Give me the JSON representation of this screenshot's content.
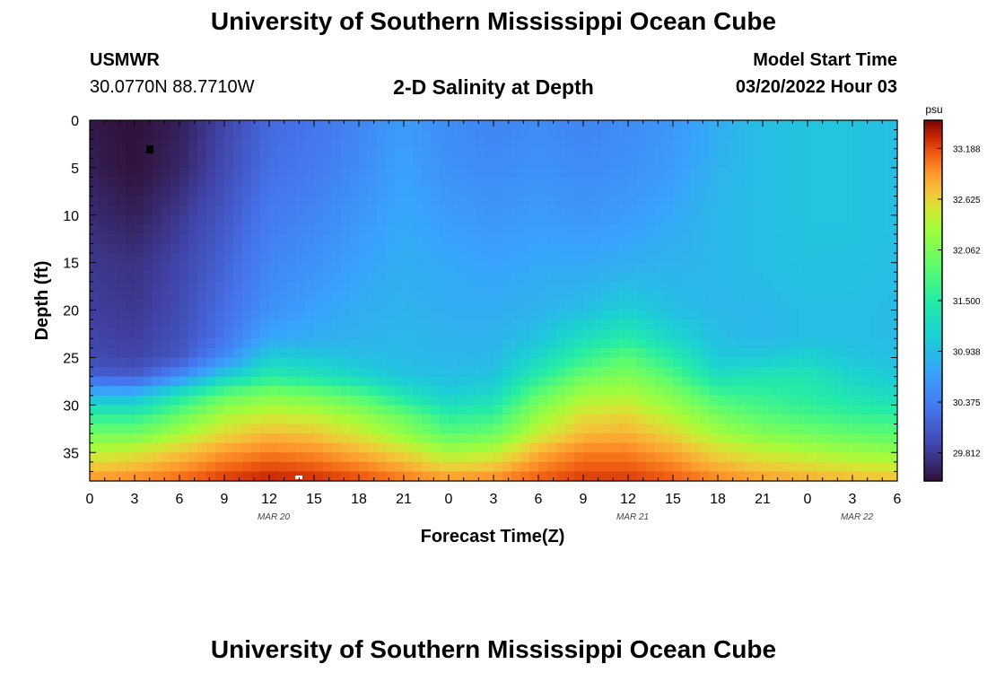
{
  "header": {
    "title": "University of Southern Mississippi Ocean Cube",
    "station": "USMWR",
    "coords": "30.0770N  88.7710W",
    "subtitle": "2-D Salinity at Depth",
    "model_start_label": "Model Start Time",
    "model_start_value": "03/20/2022 Hour 03"
  },
  "footer": {
    "title": "University of Southern Mississippi Ocean Cube"
  },
  "chart_data": {
    "type": "heatmap",
    "title": "2-D Salinity at Depth",
    "xlabel": "Forecast Time(Z)",
    "ylabel": "Depth (ft)",
    "x_range_hours": [
      0,
      54
    ],
    "x_start": "MAR 20 00Z",
    "x_tick_labels": [
      "0",
      "3",
      "6",
      "9",
      "12",
      "15",
      "18",
      "21",
      "0",
      "3",
      "6",
      "9",
      "12",
      "15",
      "18",
      "21",
      "0",
      "3",
      "6"
    ],
    "date_labels": [
      {
        "hour": 12,
        "text": "MAR 20"
      },
      {
        "hour": 36,
        "text": "MAR 21"
      },
      {
        "hour": 51,
        "text": "MAR 22"
      }
    ],
    "y_range": [
      0,
      38
    ],
    "y_ticks": [
      0,
      5,
      10,
      15,
      20,
      25,
      30,
      35
    ],
    "colorbar": {
      "unit": "psu",
      "range": [
        29.5,
        33.5
      ],
      "ticks": [
        "33.188",
        "32.625",
        "32.062",
        "31.500",
        "30.938",
        "30.375",
        "29.812"
      ]
    },
    "salinity_field_psu": {
      "depth_ft": [
        0,
        5,
        10,
        15,
        20,
        23,
        25,
        27,
        29,
        31,
        33,
        35,
        38
      ],
      "hours": [
        0,
        3,
        6,
        9,
        12,
        15,
        18,
        21,
        24,
        27,
        30,
        33,
        36,
        39,
        42,
        45,
        48,
        51,
        54
      ],
      "values": [
        [
          29.55,
          29.5,
          29.6,
          29.9,
          30.2,
          30.3,
          30.45,
          30.65,
          30.5,
          30.45,
          30.5,
          30.45,
          30.5,
          30.6,
          30.8,
          30.95,
          31.0,
          31.0,
          30.95
        ],
        [
          29.6,
          29.5,
          29.65,
          29.95,
          30.25,
          30.35,
          30.5,
          30.7,
          30.55,
          30.5,
          30.55,
          30.5,
          30.55,
          30.65,
          30.85,
          30.95,
          31.0,
          31.0,
          30.95
        ],
        [
          29.7,
          29.6,
          29.8,
          30.05,
          30.35,
          30.45,
          30.6,
          30.75,
          30.65,
          30.6,
          30.65,
          30.6,
          30.65,
          30.75,
          30.9,
          30.95,
          31.0,
          31.0,
          30.95
        ],
        [
          29.8,
          29.75,
          29.9,
          30.15,
          30.45,
          30.55,
          30.7,
          30.8,
          30.75,
          30.7,
          30.75,
          30.75,
          30.8,
          30.85,
          30.9,
          30.95,
          30.98,
          30.98,
          30.95
        ],
        [
          29.85,
          29.8,
          29.95,
          30.25,
          30.55,
          30.7,
          30.8,
          30.85,
          30.8,
          30.8,
          30.85,
          30.95,
          31.1,
          30.95,
          30.9,
          30.9,
          30.95,
          30.95,
          30.92
        ],
        [
          29.9,
          29.85,
          30.0,
          30.3,
          30.75,
          30.8,
          30.85,
          30.9,
          30.85,
          30.85,
          31.0,
          31.3,
          31.5,
          31.2,
          30.95,
          30.9,
          30.95,
          30.95,
          30.92
        ],
        [
          29.95,
          29.9,
          30.05,
          30.5,
          31.1,
          31.05,
          30.95,
          30.92,
          30.88,
          30.9,
          31.2,
          31.6,
          31.85,
          31.5,
          31.05,
          31.05,
          31.15,
          31.0,
          30.95
        ],
        [
          30.15,
          30.1,
          30.5,
          31.1,
          31.5,
          31.4,
          31.2,
          31.0,
          30.95,
          31.0,
          31.5,
          31.95,
          32.1,
          31.8,
          31.3,
          31.4,
          31.4,
          31.2,
          31.05
        ],
        [
          30.9,
          30.9,
          31.4,
          31.9,
          32.1,
          32.0,
          31.8,
          31.4,
          31.1,
          31.25,
          31.9,
          32.3,
          32.35,
          32.1,
          31.7,
          31.6,
          31.5,
          31.35,
          31.25
        ],
        [
          31.5,
          31.5,
          31.9,
          32.3,
          32.45,
          32.4,
          32.2,
          31.9,
          31.5,
          31.6,
          32.2,
          32.55,
          32.6,
          32.35,
          32.0,
          31.8,
          31.7,
          31.6,
          31.55
        ],
        [
          32.0,
          32.0,
          32.3,
          32.6,
          32.75,
          32.7,
          32.5,
          32.2,
          31.85,
          31.95,
          32.45,
          32.75,
          32.8,
          32.6,
          32.3,
          32.1,
          32.0,
          31.9,
          31.85
        ],
        [
          32.4,
          32.5,
          32.7,
          32.9,
          33.0,
          32.95,
          32.8,
          32.6,
          32.3,
          32.4,
          32.8,
          33.0,
          33.0,
          32.85,
          32.6,
          32.45,
          32.35,
          32.25,
          32.2
        ],
        [
          32.95,
          33.0,
          33.1,
          33.25,
          33.35,
          33.3,
          33.2,
          33.05,
          32.95,
          33.0,
          33.15,
          33.25,
          33.25,
          33.15,
          33.0,
          32.9,
          32.85,
          32.8,
          32.75
        ]
      ]
    }
  }
}
